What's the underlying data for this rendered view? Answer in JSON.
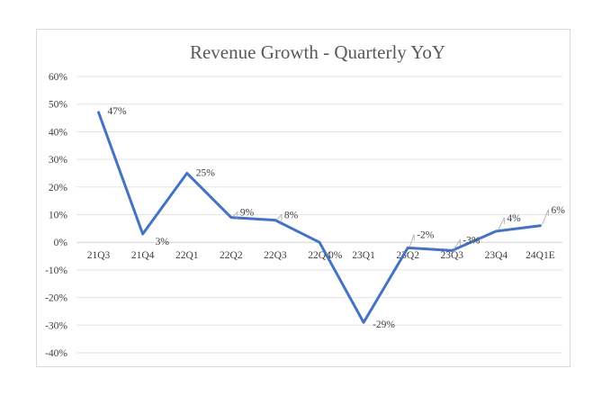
{
  "chart_data": {
    "type": "line",
    "title": "Revenue Growth - Quarterly YoY",
    "categories": [
      "21Q3",
      "21Q4",
      "22Q1",
      "22Q2",
      "22Q3",
      "22Q4",
      "23Q1",
      "23Q2",
      "23Q3",
      "23Q4",
      "24Q1E"
    ],
    "series": [
      {
        "values": [
          47,
          3,
          25,
          9,
          8,
          0,
          -29,
          -2,
          -3,
          4,
          6
        ],
        "labels": [
          "47%",
          "3%",
          "25%",
          "9%",
          "8%",
          "0%",
          "-29%",
          "-2%",
          "-3%",
          "4%",
          "6%"
        ],
        "color": "#4472c4"
      }
    ],
    "y_ticks": [
      60,
      50,
      40,
      30,
      20,
      10,
      0,
      -10,
      -20,
      -30,
      -40
    ],
    "y_tick_labels": [
      "60%",
      "50%",
      "40%",
      "30%",
      "20%",
      "10%",
      "0%",
      "-10%",
      "-20%",
      "-30%",
      "-40%"
    ],
    "ylim": [
      -40,
      60
    ],
    "xlabel": "",
    "ylabel": "",
    "grid": true,
    "legend": false
  }
}
